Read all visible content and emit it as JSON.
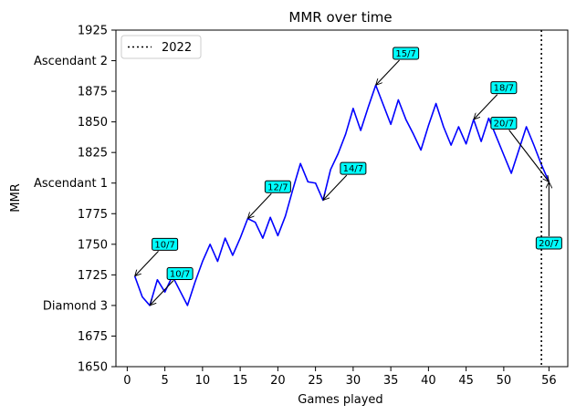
{
  "chart_data": {
    "type": "line",
    "title": "MMR over time",
    "xlabel": "Games played",
    "ylabel": "MMR",
    "xlim": [
      -1.5,
      58.5
    ],
    "ylim": [
      1650,
      1925
    ],
    "x_ticks": [
      0,
      5,
      10,
      15,
      20,
      25,
      30,
      35,
      40,
      45,
      50,
      56
    ],
    "y_ticks": [
      {
        "value": 1650,
        "label": "1650"
      },
      {
        "value": 1675,
        "label": "1675"
      },
      {
        "value": 1700,
        "label": "Diamond 3"
      },
      {
        "value": 1725,
        "label": "1725"
      },
      {
        "value": 1750,
        "label": "1750"
      },
      {
        "value": 1775,
        "label": "1775"
      },
      {
        "value": 1800,
        "label": "Ascendant 1"
      },
      {
        "value": 1825,
        "label": "1825"
      },
      {
        "value": 1850,
        "label": "1850"
      },
      {
        "value": 1875,
        "label": "1875"
      },
      {
        "value": 1900,
        "label": "Ascendant 2"
      },
      {
        "value": 1925,
        "label": "1925"
      }
    ],
    "series": [
      {
        "color": "#0000ff",
        "x": [
          1,
          2,
          3,
          4,
          5,
          6,
          7,
          8,
          9,
          10,
          11,
          12,
          13,
          14,
          15,
          16,
          17,
          18,
          19,
          20,
          21,
          22,
          23,
          24,
          25,
          26,
          27,
          28,
          29,
          30,
          31,
          32,
          33,
          34,
          35,
          36,
          37,
          38,
          39,
          40,
          41,
          42,
          43,
          44,
          45,
          46,
          47,
          48,
          49,
          50,
          51,
          52,
          53,
          54,
          55,
          56
        ],
        "y": [
          1724,
          1707,
          1700,
          1721,
          1711,
          1724,
          1712,
          1700,
          1719,
          1736,
          1750,
          1736,
          1755,
          1741,
          1755,
          1771,
          1768,
          1755,
          1772,
          1757,
          1773,
          1795,
          1816,
          1801,
          1800,
          1786,
          1811,
          1824,
          1840,
          1861,
          1843,
          1862,
          1880,
          1864,
          1848,
          1868,
          1852,
          1840,
          1827,
          1847,
          1865,
          1846,
          1831,
          1846,
          1832,
          1852,
          1834,
          1853,
          1838,
          1823,
          1808,
          1827,
          1846,
          1831,
          1815,
          1801
        ]
      }
    ],
    "vline": {
      "x": 55,
      "label": "2022",
      "color": "#000000",
      "style": "dotted"
    },
    "annotations": [
      {
        "text": "10/7",
        "x": 1,
        "y": 1724,
        "tx": 5,
        "ty": 1750
      },
      {
        "text": "10/7",
        "x": 3,
        "y": 1700,
        "tx": 7,
        "ty": 1726
      },
      {
        "text": "12/7",
        "x": 16,
        "y": 1771,
        "tx": 20,
        "ty": 1797
      },
      {
        "text": "14/7",
        "x": 26,
        "y": 1786,
        "tx": 30,
        "ty": 1812
      },
      {
        "text": "15/7",
        "x": 33,
        "y": 1880,
        "tx": 37,
        "ty": 1906
      },
      {
        "text": "18/7",
        "x": 46,
        "y": 1852,
        "tx": 50,
        "ty": 1878
      },
      {
        "text": "20/7",
        "x": 56,
        "y": 1801,
        "tx": 50,
        "ty": 1849
      },
      {
        "text": "20/7",
        "x": 56,
        "y": 1801,
        "tx": 56,
        "ty": 1751
      }
    ],
    "annotation_box_color": "#00ffff",
    "legend": {
      "position": "top-left",
      "entries": [
        {
          "label": "2022",
          "style": "dotted",
          "color": "#000000"
        }
      ]
    },
    "grid": false
  }
}
